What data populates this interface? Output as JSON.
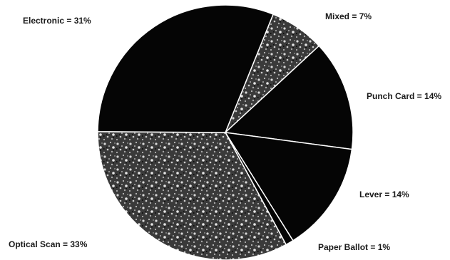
{
  "chart_data": {
    "type": "pie",
    "title": "",
    "slices": [
      {
        "label": "Mixed",
        "value": 7,
        "display": "Mixed =  7%",
        "style": "speckled"
      },
      {
        "label": "Punch Card",
        "value": 14,
        "display": "Punch Card = 14%",
        "style": "solid"
      },
      {
        "label": "Lever",
        "value": 14,
        "display": "Lever = 14%",
        "style": "solid"
      },
      {
        "label": "Paper Ballot",
        "value": 1,
        "display": "Paper Ballot = 1%",
        "style": "solid"
      },
      {
        "label": "Optical Scan",
        "value": 33,
        "display": "Optical Scan = 33%",
        "style": "speckled"
      },
      {
        "label": "Electronic",
        "value": 31,
        "display": "Electronic =  31%",
        "style": "solid"
      }
    ],
    "start_angle_deg": 22,
    "direction": "clockwise",
    "legend": "none",
    "colors": {
      "solid": "#050505",
      "speckled_base": "#3a3a3a",
      "speckled_light": "#d8d8d8",
      "divider": "#ffffff"
    }
  }
}
